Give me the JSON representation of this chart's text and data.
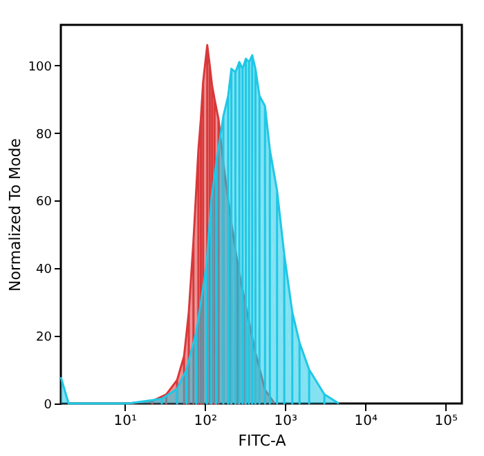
{
  "chart_data": {
    "type": "area",
    "xlabel": "FITC-A",
    "ylabel": "Normalized To Mode",
    "log": "x",
    "grid": false,
    "xlim": [
      1.6,
      160000
    ],
    "xticks": [
      {
        "value": 10,
        "label": "10¹"
      },
      {
        "value": 100,
        "label": "10²"
      },
      {
        "value": 1000,
        "label": "10³"
      },
      {
        "value": 10000,
        "label": "10⁴"
      },
      {
        "value": 100000,
        "label": "10⁵"
      }
    ],
    "ylim": [
      0,
      112
    ],
    "yticks": [
      0,
      20,
      40,
      60,
      80,
      100
    ],
    "series": [
      {
        "color": "#d9383a",
        "x": [
          11,
          22,
          33,
          45,
          55,
          63,
          72,
          83,
          89,
          95,
          107,
          115,
          123,
          132,
          148,
          170,
          209,
          257,
          316,
          427,
          562,
          741
        ],
        "values": [
          0,
          0.7,
          2.7,
          6.9,
          14,
          27,
          48,
          75,
          84,
          95,
          106,
          100,
          94,
          90,
          84,
          71,
          55,
          41,
          30,
          15,
          4,
          0
        ]
      },
      {
        "color": "#1ec8e6",
        "x": [
          1.6,
          2,
          11,
          29,
          45,
          59,
          78,
          105,
          120,
          138,
          170,
          195,
          214,
          240,
          269,
          295,
          324,
          355,
          389,
          427,
          479,
          562,
          646,
          794,
          977,
          1230,
          1514,
          1995,
          3090,
          4677
        ],
        "values": [
          7.8,
          0,
          0,
          1.4,
          4.3,
          10,
          21,
          41,
          60,
          71,
          85,
          91,
          99,
          98,
          101,
          99,
          102,
          101,
          103,
          99,
          91,
          88,
          75,
          63,
          44,
          27,
          18,
          10,
          2.7,
          0
        ]
      }
    ]
  }
}
